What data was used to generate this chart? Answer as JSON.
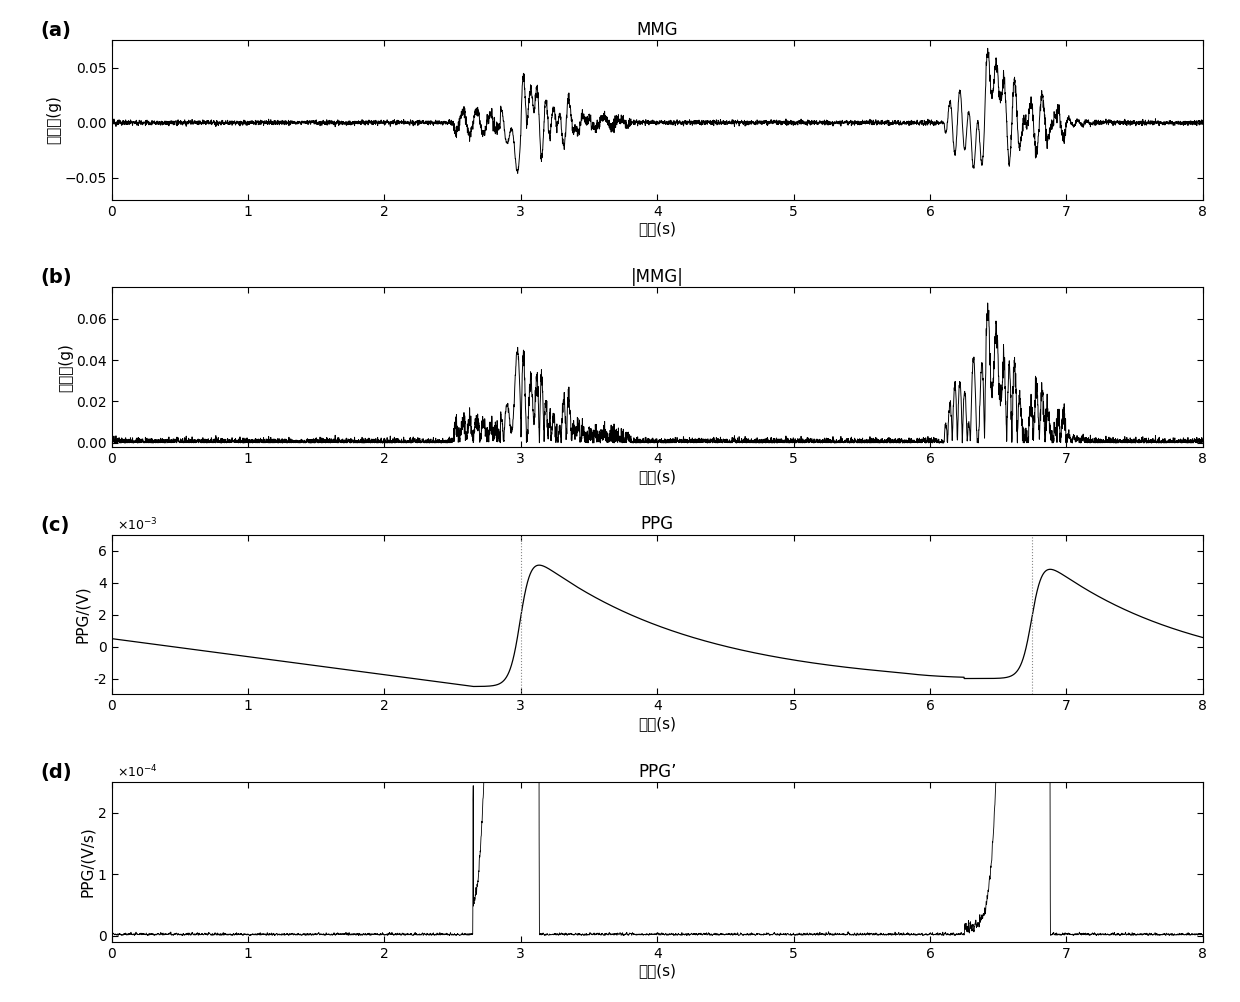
{
  "title_a": "MMG",
  "title_b": "|MMG|",
  "title_c": "PPG",
  "title_d": "PPG’",
  "xlabel": "时间(s)",
  "ylabel_a": "加速度(g)",
  "ylabel_b": "加速度(g)",
  "ylabel_c": "PPG/(V)",
  "ylabel_d": "PPG/(V/s)",
  "xlim": [
    0,
    8
  ],
  "ylim_a": [
    -0.07,
    0.075
  ],
  "ylim_b": [
    -0.002,
    0.075
  ],
  "ylim_c": [
    -0.003,
    0.007
  ],
  "ylim_d": [
    -1e-05,
    0.00025
  ],
  "xticks": [
    0,
    1,
    2,
    3,
    4,
    5,
    6,
    7,
    8
  ],
  "panel_labels": [
    "(a)",
    "(b)",
    "(c)",
    "(d)"
  ],
  "bg_color": "#ffffff",
  "line_color": "#000000",
  "fs": 1000
}
